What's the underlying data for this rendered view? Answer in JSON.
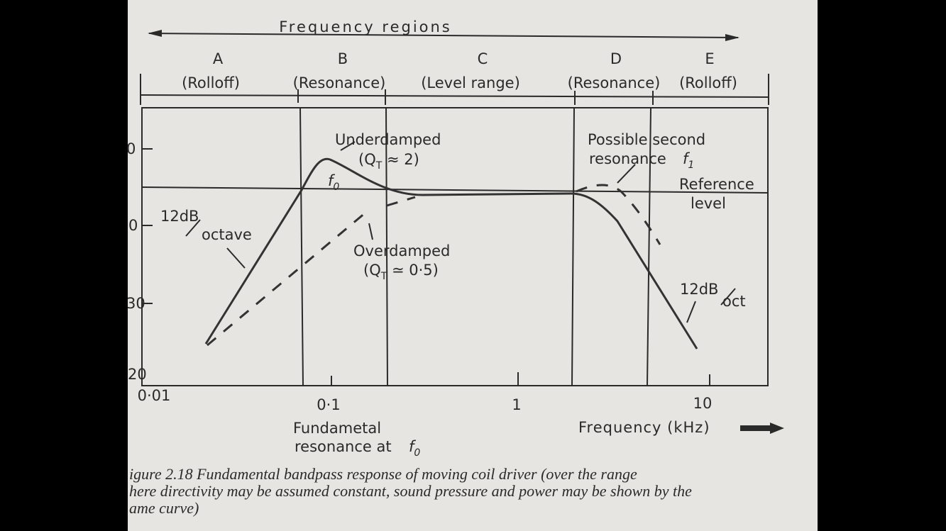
{
  "header": {
    "title": "Frequency regions"
  },
  "regions": [
    {
      "letter": "A",
      "label": "(Rolloff)"
    },
    {
      "letter": "B",
      "label": "(Resonance)"
    },
    {
      "letter": "C",
      "label": "(Level range)"
    },
    {
      "letter": "D",
      "label": "(Resonance)"
    },
    {
      "letter": "E",
      "label": "(Rolloff)"
    }
  ],
  "y_labels": [
    "0",
    "0",
    "30",
    "20"
  ],
  "x_labels": [
    "0·01",
    "0·1",
    "1",
    "10"
  ],
  "annotations": {
    "underdamped": "Underdamped",
    "underdamped_q": {
      "before": "(Q",
      "sub": "T",
      "after": " ≈ 2)"
    },
    "f0": {
      "main": "f",
      "sub": "0"
    },
    "slope_left": {
      "top": "12dB",
      "bottom": "octave"
    },
    "overdamped": "Overdamped",
    "overdamped_q": {
      "before": "(Q",
      "sub": "T",
      "after": " ≃ 0·5)"
    },
    "second": {
      "line1": "Possible  second",
      "line2": "resonance",
      "f": "f",
      "sub": "1"
    },
    "reference": {
      "line1": "Reference",
      "line2": "level"
    },
    "slope_right": {
      "top": "12dB",
      "bottom": "oct"
    }
  },
  "axis": {
    "fundamental": {
      "line1": "Fundametal",
      "line2": "resonance at",
      "f": "f",
      "sub": "0"
    },
    "frequency": "Frequency  (kHz)"
  },
  "caption": [
    "igure 2.18  Fundamental bandpass response of moving coil driver (over the range",
    "here directivity may be assumed constant, sound pressure and power may be shown by the",
    "ame curve)"
  ]
}
